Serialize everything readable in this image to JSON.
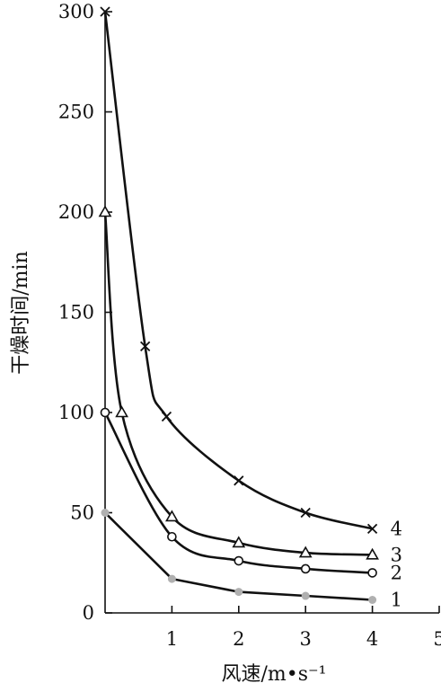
{
  "chart_data": {
    "type": "line",
    "xlabel": "风速/m•s⁻¹",
    "ylabel": "干燥时间/min",
    "xlim": [
      0,
      5
    ],
    "ylim": [
      0,
      300
    ],
    "xticks": [
      "1",
      "2",
      "3",
      "4",
      "5"
    ],
    "yticks": [
      "0",
      "50",
      "100",
      "150",
      "200",
      "250",
      "300"
    ],
    "grid": false,
    "series": [
      {
        "name": "1",
        "marker": "filled-circle",
        "marker_color": "#b0b0b0",
        "points": [
          [
            0,
            50
          ],
          [
            1,
            17
          ],
          [
            2,
            10.5
          ],
          [
            3,
            8.5
          ],
          [
            4,
            6.5
          ]
        ]
      },
      {
        "name": "2",
        "marker": "circle",
        "points": [
          [
            0,
            100
          ],
          [
            1,
            38
          ],
          [
            2,
            26
          ],
          [
            3,
            22
          ],
          [
            4,
            20
          ]
        ]
      },
      {
        "name": "3",
        "marker": "triangle",
        "points": [
          [
            0,
            200
          ],
          [
            0.25,
            100
          ],
          [
            1,
            48
          ],
          [
            2,
            35
          ],
          [
            3,
            30
          ],
          [
            4,
            29
          ]
        ]
      },
      {
        "name": "4",
        "marker": "x",
        "points": [
          [
            0,
            300
          ],
          [
            0.6,
            133
          ],
          [
            0.92,
            98
          ],
          [
            2,
            66
          ],
          [
            3,
            50
          ],
          [
            4,
            42
          ]
        ]
      }
    ]
  }
}
